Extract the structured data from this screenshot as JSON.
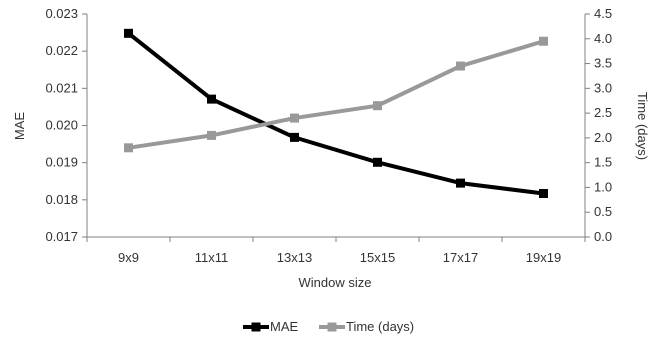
{
  "chart_data": {
    "type": "line",
    "xlabel": "Window size",
    "ylabel_left": "MAE",
    "ylabel_right": "Time (days)",
    "categories": [
      "9x9",
      "11x11",
      "13x13",
      "15x15",
      "17x17",
      "19x19"
    ],
    "ylim_left": [
      0.017,
      0.023
    ],
    "yticks_left": [
      "0.017",
      "0.018",
      "0.019",
      "0.020",
      "0.021",
      "0.022",
      "0.023"
    ],
    "ylim_right": [
      0.0,
      4.5
    ],
    "yticks_right": [
      "0.0",
      "0.5",
      "1.0",
      "1.5",
      "2.0",
      "2.5",
      "3.0",
      "3.5",
      "4.0",
      "4.5"
    ],
    "grid": false,
    "legend_position": "bottom",
    "series": [
      {
        "name": "MAE",
        "axis": "left",
        "color": "#000000",
        "values": [
          0.02248,
          0.02071,
          0.01968,
          0.01901,
          0.01845,
          0.01817
        ]
      },
      {
        "name": "Time (days)",
        "axis": "right",
        "color": "#999999",
        "values": [
          1.8,
          2.05,
          2.4,
          2.65,
          3.45,
          3.95
        ]
      }
    ]
  }
}
